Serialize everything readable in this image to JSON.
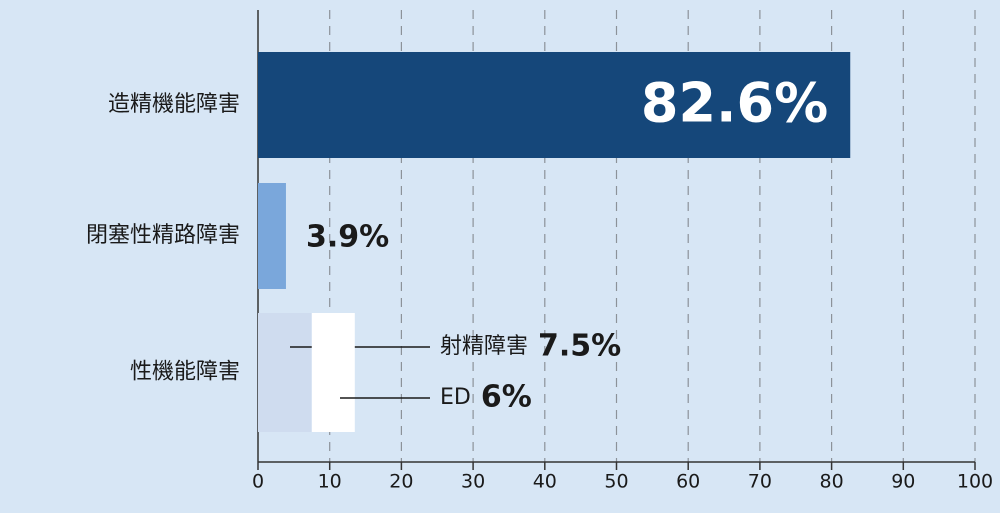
{
  "chart_data": {
    "type": "bar",
    "categories": [
      "造精機能障害",
      "閉塞性精路障害",
      "性機能障害"
    ],
    "values": [
      82.6,
      3.9,
      null
    ],
    "value_labels": [
      "82.6%",
      "3.9%",
      null
    ],
    "colors": [
      "#15477a",
      "#7aa7db",
      null
    ],
    "segments": [
      {
        "name": "射精障害",
        "value": 7.5,
        "value_label": "7.5%",
        "color": "#cfdcef"
      },
      {
        "name": "ED",
        "value": 6,
        "value_label": "6%",
        "color": "#ffffff"
      }
    ],
    "xlim": [
      0,
      100
    ],
    "xticks": [
      0,
      10,
      20,
      30,
      40,
      50,
      60,
      70,
      80,
      90,
      100
    ],
    "grid": true
  }
}
